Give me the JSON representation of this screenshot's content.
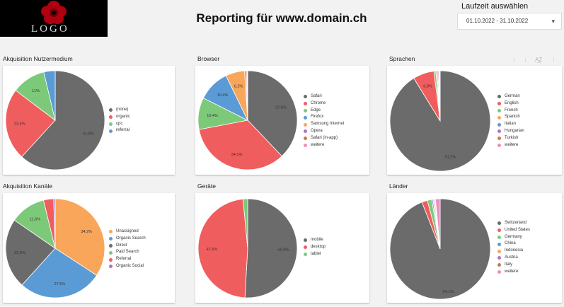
{
  "header": {
    "logo_text": "LOGO",
    "title": "Reporting für www.domain.ch",
    "date_label": "Laufzeit auswählen",
    "date_range": "01.10.2022 - 31.10.2022",
    "caret": "▾"
  },
  "toolbar": {
    "icons": [
      "arrow-up-icon",
      "arrow-down-icon",
      "sort-az-icon",
      "more-vert-icon"
    ],
    "glyphs": [
      "↑",
      "↓",
      "A͢Z",
      "⋮"
    ]
  },
  "colors": {
    "gray": "#6b6b6b",
    "red": "#f05d5e",
    "green": "#7dc97a",
    "blue": "#5b9bd5",
    "orange": "#f9a65a",
    "purple": "#a974c6",
    "brown": "#c87a55",
    "pink": "#f28cc0"
  },
  "charts": [
    {
      "id": "akquisition-nutzermedium",
      "title": "Akquisition Nutzermedium",
      "type": "pie",
      "slices": [
        {
          "label": "(none)",
          "value": 61.8,
          "color": "#6b6b6b",
          "text": "61,8%"
        },
        {
          "label": "organic",
          "value": 23.5,
          "color": "#f05d5e",
          "text": "23,5%"
        },
        {
          "label": "cpc",
          "value": 11.0,
          "color": "#7dc97a",
          "text": "11%"
        },
        {
          "label": "referral",
          "value": 3.7,
          "color": "#5b9bd5",
          "text": ""
        }
      ]
    },
    {
      "id": "browser",
      "title": "Browser",
      "type": "pie",
      "slices": [
        {
          "label": "Safari",
          "value": 37.9,
          "color": "#6b6b6b",
          "text": "37,9%"
        },
        {
          "label": "Chrome",
          "value": 34.1,
          "color": "#f05d5e",
          "text": "34,1%"
        },
        {
          "label": "Edge",
          "value": 10.4,
          "color": "#7dc97a",
          "text": "10,4%"
        },
        {
          "label": "Firefox",
          "value": 10.4,
          "color": "#5b9bd5",
          "text": "10,4%"
        },
        {
          "label": "Samsung Internet",
          "value": 6.2,
          "color": "#f9a65a",
          "text": "6,2%"
        },
        {
          "label": "Opera",
          "value": 0.5,
          "color": "#a974c6",
          "text": ""
        },
        {
          "label": "Safari (in-app)",
          "value": 0.3,
          "color": "#c87a55",
          "text": ""
        },
        {
          "label": "weitere",
          "value": 0.2,
          "color": "#f28cc0",
          "text": ""
        }
      ]
    },
    {
      "id": "sprachen",
      "title": "Sprachen",
      "type": "pie",
      "slices": [
        {
          "label": "German",
          "value": 91.2,
          "color": "#6b6b6b",
          "text": "91,2%"
        },
        {
          "label": "English",
          "value": 6.8,
          "color": "#f05d5e",
          "text": "6,8%"
        },
        {
          "label": "French",
          "value": 0.6,
          "color": "#7dc97a",
          "text": ""
        },
        {
          "label": "Spanish",
          "value": 0.4,
          "color": "#f9a65a",
          "text": ""
        },
        {
          "label": "Italian",
          "value": 0.3,
          "color": "#5b9bd5",
          "text": ""
        },
        {
          "label": "Hungarian",
          "value": 0.3,
          "color": "#a974c6",
          "text": ""
        },
        {
          "label": "Turkish",
          "value": 0.2,
          "color": "#c87a55",
          "text": ""
        },
        {
          "label": "weitere",
          "value": 0.2,
          "color": "#f28cc0",
          "text": ""
        }
      ]
    },
    {
      "id": "akquisition-kanaele",
      "title": "Akquisition Kanäle",
      "type": "pie",
      "slices": [
        {
          "label": "Unassigned",
          "value": 34.2,
          "color": "#f9a65a",
          "text": "34,2%"
        },
        {
          "label": "Organic Search",
          "value": 27.5,
          "color": "#5b9bd5",
          "text": "27,5%"
        },
        {
          "label": "Direct",
          "value": 22.9,
          "color": "#6b6b6b",
          "text": "22,9%"
        },
        {
          "label": "Paid Search",
          "value": 11.6,
          "color": "#7dc97a",
          "text": "11,6%"
        },
        {
          "label": "Referral",
          "value": 3.3,
          "color": "#f05d5e",
          "text": ""
        },
        {
          "label": "Organic Social",
          "value": 0.5,
          "color": "#a974c6",
          "text": ""
        }
      ]
    },
    {
      "id": "geraete",
      "title": "Geräte",
      "type": "pie",
      "slices": [
        {
          "label": "mobile",
          "value": 50.9,
          "color": "#6b6b6b",
          "text": "50,9%"
        },
        {
          "label": "desktop",
          "value": 47.6,
          "color": "#f05d5e",
          "text": "47,6%"
        },
        {
          "label": "tablet",
          "value": 1.5,
          "color": "#7dc97a",
          "text": ""
        }
      ]
    },
    {
      "id": "laender",
      "title": "Länder",
      "type": "pie",
      "slices": [
        {
          "label": "Switzerland",
          "value": 94.1,
          "color": "#6b6b6b",
          "text": "94,1%"
        },
        {
          "label": "United States",
          "value": 1.8,
          "color": "#f05d5e",
          "text": ""
        },
        {
          "label": "Germany",
          "value": 1.4,
          "color": "#7dc97a",
          "text": ""
        },
        {
          "label": "China",
          "value": 0.4,
          "color": "#5b9bd5",
          "text": ""
        },
        {
          "label": "Indonesia",
          "value": 0.3,
          "color": "#f9a65a",
          "text": ""
        },
        {
          "label": "Austria",
          "value": 0.3,
          "color": "#a974c6",
          "text": ""
        },
        {
          "label": "Italy",
          "value": 0.2,
          "color": "#c87a55",
          "text": ""
        },
        {
          "label": "weitere",
          "value": 1.5,
          "color": "#f28cc0",
          "text": ""
        }
      ]
    }
  ]
}
